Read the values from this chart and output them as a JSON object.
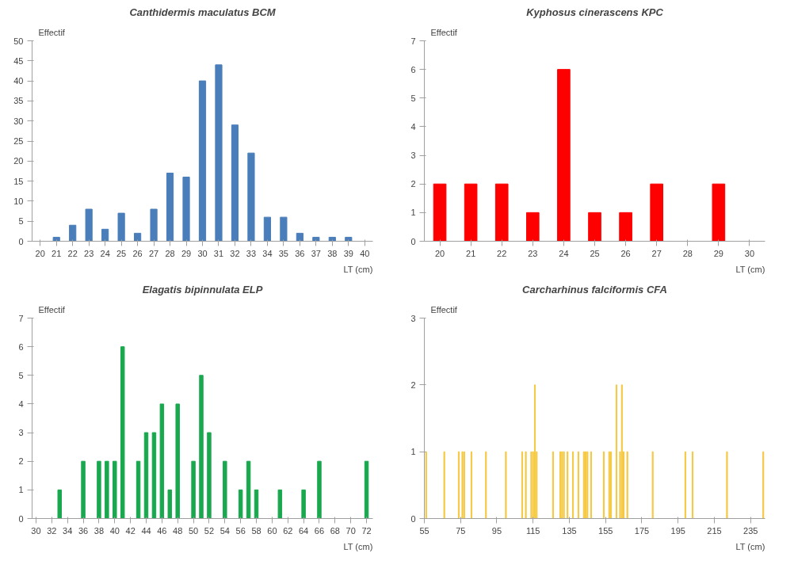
{
  "chart_data": [
    {
      "type": "bar",
      "title": "Canthidermis maculatus BCM",
      "xlabel": "LT (cm)",
      "ylabel": "Effectif",
      "categories": [
        "20",
        "21",
        "22",
        "23",
        "24",
        "25",
        "26",
        "27",
        "28",
        "29",
        "30",
        "31",
        "32",
        "33",
        "34",
        "35",
        "36",
        "37",
        "38",
        "39",
        "40"
      ],
      "series": [
        {
          "color": "#4a7ebb",
          "values": [
            0,
            1,
            4,
            8,
            3,
            7,
            2,
            8,
            17,
            16,
            40,
            44,
            29,
            22,
            6,
            6,
            2,
            1,
            1,
            1,
            0
          ]
        }
      ],
      "ylim": [
        0,
        50
      ],
      "yticks": [
        0,
        5,
        10,
        15,
        20,
        25,
        30,
        35,
        40,
        45,
        50
      ],
      "grid": false
    },
    {
      "type": "bar",
      "title": "Kyphosus cinerascens KPC",
      "xlabel": "LT (cm)",
      "ylabel": "Effectif",
      "categories": [
        "20",
        "21",
        "22",
        "23",
        "24",
        "25",
        "26",
        "27",
        "28",
        "29",
        "30"
      ],
      "series": [
        {
          "color": "#ff0000",
          "values": [
            2,
            2,
            2,
            1,
            6,
            1,
            1,
            2,
            0,
            2,
            0
          ]
        }
      ],
      "ylim": [
        0,
        7
      ],
      "yticks": [
        0,
        1,
        2,
        3,
        4,
        5,
        6,
        7
      ],
      "grid": false
    },
    {
      "type": "bar",
      "title": "Elagatis bipinnulata ELP",
      "xlabel": "LT (cm)",
      "ylabel": "Effectif",
      "x": [
        33,
        36,
        38,
        39,
        40,
        41,
        43,
        44,
        45,
        46,
        47,
        48,
        50,
        51,
        52,
        54,
        56,
        57,
        58,
        61,
        64,
        66,
        72
      ],
      "series": [
        {
          "color": "#1aa84f",
          "values": [
            1,
            2,
            2,
            2,
            2,
            6,
            2,
            3,
            3,
            4,
            1,
            4,
            2,
            5,
            3,
            2,
            1,
            2,
            1,
            1,
            1,
            2,
            2
          ]
        }
      ],
      "xlim": [
        29.5,
        72.8
      ],
      "xticks": [
        30,
        32,
        34,
        36,
        38,
        40,
        42,
        44,
        46,
        48,
        50,
        52,
        54,
        56,
        58,
        60,
        62,
        64,
        66,
        68,
        70,
        72
      ],
      "ylim": [
        0,
        7
      ],
      "yticks": [
        0,
        1,
        2,
        3,
        4,
        5,
        6,
        7
      ],
      "grid": false
    },
    {
      "type": "bar",
      "title": "Carcharhinus falciformis CFA",
      "xlabel": "LT (cm)",
      "ylabel": "Effectif",
      "x": [
        56,
        66,
        74,
        76,
        77,
        81,
        89,
        100,
        109,
        111,
        114,
        115,
        116,
        117,
        126,
        130,
        131,
        132,
        134,
        137,
        140,
        143,
        144,
        145,
        147,
        154,
        157,
        158,
        161,
        163,
        164,
        165,
        167,
        181,
        199,
        203,
        222,
        242
      ],
      "series": [
        {
          "color": "#f5c842",
          "values": [
            1,
            1,
            1,
            1,
            1,
            1,
            1,
            1,
            1,
            1,
            1,
            1,
            2,
            1,
            1,
            1,
            1,
            1,
            1,
            1,
            1,
            1,
            1,
            1,
            1,
            1,
            1,
            1,
            2,
            1,
            2,
            1,
            1,
            1,
            1,
            1,
            1,
            1
          ]
        }
      ],
      "xlim": [
        55,
        243
      ],
      "xticks": [
        55,
        75,
        95,
        115,
        135,
        155,
        175,
        195,
        215,
        235
      ],
      "ylim": [
        0,
        3
      ],
      "yticks": [
        0,
        1,
        2,
        3
      ],
      "grid": false
    }
  ]
}
